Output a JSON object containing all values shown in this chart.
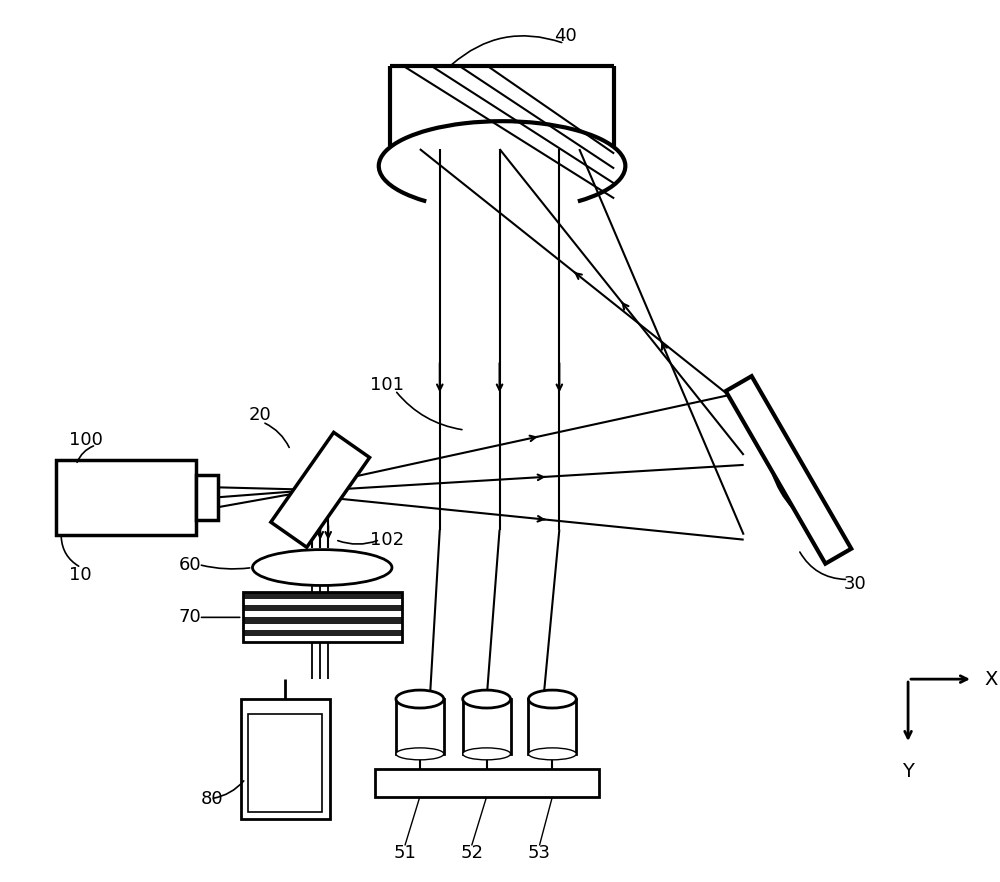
{
  "bg_color": "#ffffff",
  "line_color": "#000000",
  "figsize": [
    10.0,
    8.82
  ],
  "dpi": 100
}
